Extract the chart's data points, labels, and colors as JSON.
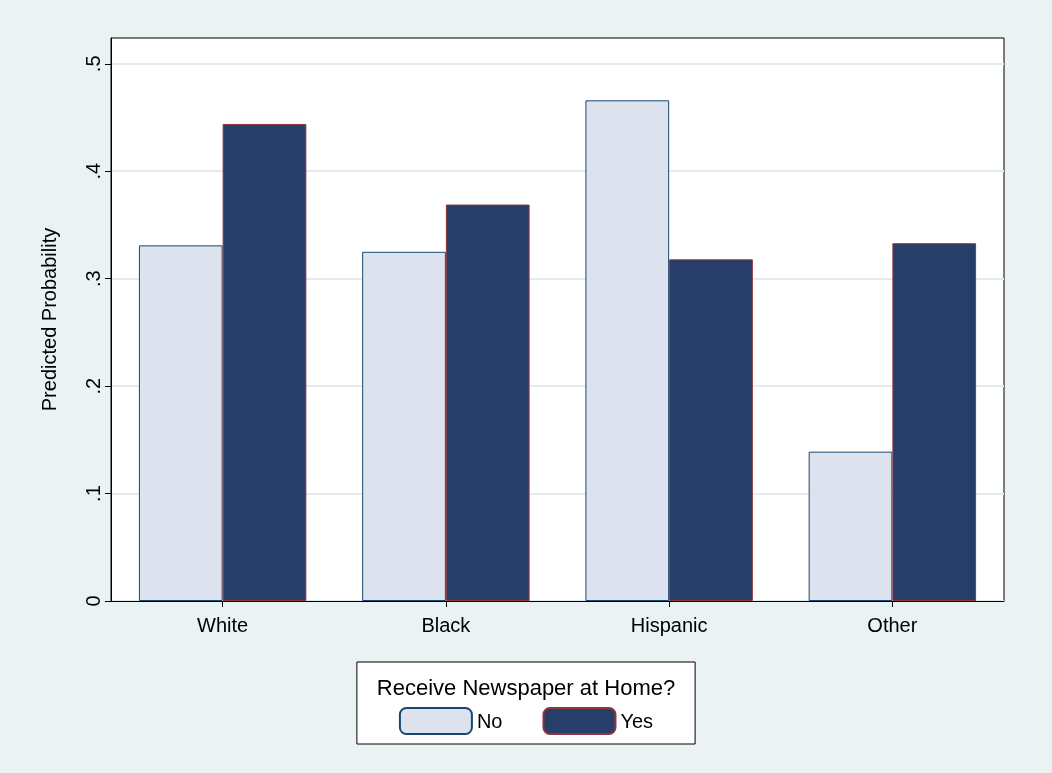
{
  "chart_data": {
    "type": "bar",
    "ylabel": "Predicted Probability",
    "legend_title": "Receive Newspaper at Home?",
    "categories": [
      "White",
      "Black",
      "Hispanic",
      "Other"
    ],
    "series": [
      {
        "name": "No",
        "color": "#dde3ee",
        "values": [
          0.331,
          0.325,
          0.466,
          0.139
        ]
      },
      {
        "name": "Yes",
        "color": "#263e69",
        "values": [
          0.444,
          0.369,
          0.318,
          0.333
        ]
      }
    ],
    "ylim": [
      0,
      0.524
    ],
    "yticks": [
      0,
      {
        "value": 0.1,
        "label": ".1"
      },
      {
        "value": 0.2,
        "label": ".2"
      },
      {
        "value": 0.3,
        "label": ".3"
      },
      {
        "value": 0.4,
        "label": ".4"
      },
      {
        "value": 0.5,
        "label": ".5"
      }
    ],
    "grid": "y",
    "legend": "bottom"
  }
}
